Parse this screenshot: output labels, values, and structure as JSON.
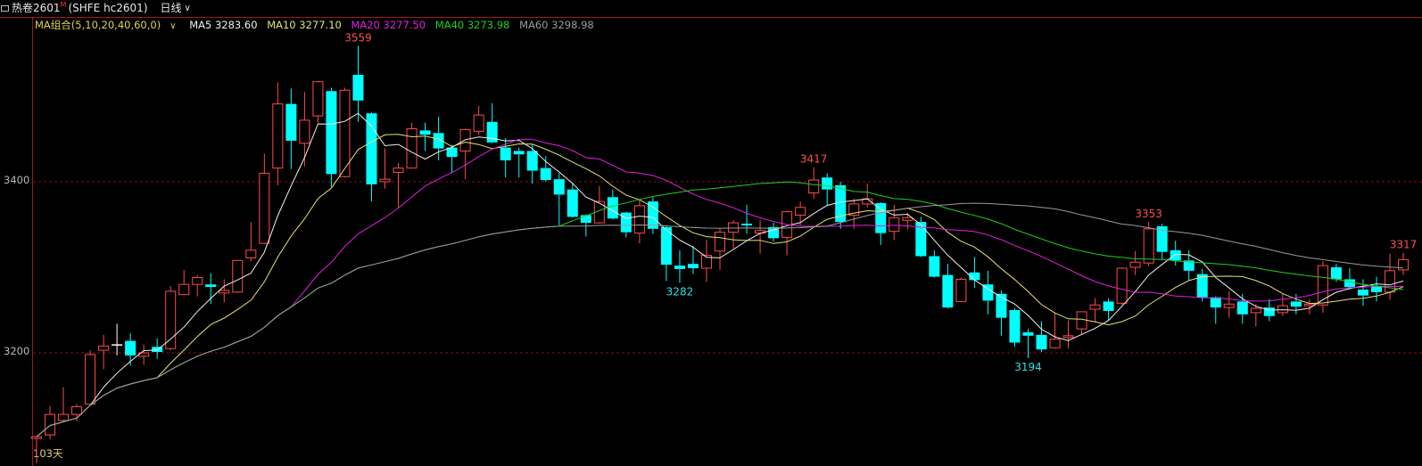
{
  "header": {
    "title": "热卷2601",
    "market_flag": "M",
    "code": "(SHFE hc2601)",
    "period": "日线",
    "ma_combo": "MA组合(5,10,20,40,60,0)",
    "ma_legend": [
      {
        "label": "MA5 3283.60",
        "color": "#f0f0f0"
      },
      {
        "label": "MA10 3277.10",
        "color": "#e6e070"
      },
      {
        "label": "MA20 3277.50",
        "color": "#e020e0"
      },
      {
        "label": "MA40 3273.98",
        "color": "#20d020"
      },
      {
        "label": "MA60 3298.98",
        "color": "#9a9a9a"
      }
    ],
    "day_count": "103天"
  },
  "chart_data": {
    "type": "candlestick",
    "ylim": [
      3060,
      3575
    ],
    "y_ticks": [
      "3400",
      "3200"
    ],
    "y_tick_values": [
      3400,
      3200
    ],
    "grid": "dashed at ticks",
    "colors": {
      "up": "#ff4a4a",
      "down": "#00ffff",
      "flat": "#ffffff",
      "grid": "#8a1010"
    },
    "ma_periods": [
      5,
      10,
      20,
      40,
      60
    ],
    "ma_colors": [
      "#f0f0f0",
      "#e6e070",
      "#e020e0",
      "#20d020",
      "#9a9a9a"
    ],
    "ohlc_fields": [
      "open",
      "high",
      "low",
      "close"
    ],
    "ohlc": [
      [
        3100,
        3103,
        3071,
        3102
      ],
      [
        3104,
        3138,
        3099,
        3128
      ],
      [
        3121,
        3160,
        3119,
        3128
      ],
      [
        3128,
        3140,
        3120,
        3137
      ],
      [
        3140,
        3203,
        3139,
        3198
      ],
      [
        3203,
        3221,
        3181,
        3208
      ],
      [
        3210,
        3234,
        3197,
        3210
      ],
      [
        3214,
        3223,
        3185,
        3197
      ],
      [
        3196,
        3210,
        3186,
        3200
      ],
      [
        3207,
        3217,
        3193,
        3201
      ],
      [
        3205,
        3278,
        3203,
        3272
      ],
      [
        3268,
        3297,
        3268,
        3280
      ],
      [
        3280,
        3291,
        3266,
        3288
      ],
      [
        3280,
        3293,
        3257,
        3277
      ],
      [
        3270,
        3286,
        3259,
        3273
      ],
      [
        3271,
        3309,
        3270,
        3308
      ],
      [
        3311,
        3353,
        3307,
        3320
      ],
      [
        3328,
        3433,
        3327,
        3410
      ],
      [
        3416,
        3516,
        3396,
        3491
      ],
      [
        3491,
        3509,
        3415,
        3448
      ],
      [
        3445,
        3505,
        3418,
        3472
      ],
      [
        3477,
        3518,
        3469,
        3517
      ],
      [
        3506,
        3510,
        3394,
        3409
      ],
      [
        3406,
        3510,
        3405,
        3507
      ],
      [
        3525,
        3559,
        3470,
        3495
      ],
      [
        3480,
        3481,
        3377,
        3397
      ],
      [
        3400,
        3439,
        3392,
        3403
      ],
      [
        3411,
        3422,
        3370,
        3416
      ],
      [
        3416,
        3469,
        3416,
        3462
      ],
      [
        3460,
        3469,
        3436,
        3455
      ],
      [
        3457,
        3476,
        3425,
        3439
      ],
      [
        3440,
        3443,
        3410,
        3429
      ],
      [
        3436,
        3462,
        3403,
        3461
      ],
      [
        3459,
        3489,
        3455,
        3478
      ],
      [
        3470,
        3492,
        3445,
        3446
      ],
      [
        3440,
        3451,
        3405,
        3425
      ],
      [
        3436,
        3440,
        3405,
        3432
      ],
      [
        3436,
        3444,
        3398,
        3413
      ],
      [
        3416,
        3430,
        3400,
        3402
      ],
      [
        3403,
        3410,
        3349,
        3385
      ],
      [
        3391,
        3399,
        3358,
        3359
      ],
      [
        3361,
        3362,
        3336,
        3352
      ],
      [
        3352,
        3395,
        3351,
        3377
      ],
      [
        3382,
        3391,
        3356,
        3357
      ],
      [
        3364,
        3365,
        3335,
        3341
      ],
      [
        3340,
        3379,
        3328,
        3372
      ],
      [
        3377,
        3382,
        3339,
        3345
      ],
      [
        3347,
        3348,
        3284,
        3303
      ],
      [
        3302,
        3320,
        3282,
        3298
      ],
      [
        3304,
        3325,
        3292,
        3299
      ],
      [
        3299,
        3332,
        3283,
        3314
      ],
      [
        3319,
        3346,
        3297,
        3341
      ],
      [
        3341,
        3355,
        3322,
        3352
      ],
      [
        3351,
        3373,
        3339,
        3349
      ],
      [
        3340,
        3355,
        3316,
        3343
      ],
      [
        3347,
        3352,
        3330,
        3334
      ],
      [
        3335,
        3366,
        3314,
        3365
      ],
      [
        3361,
        3377,
        3349,
        3370
      ],
      [
        3387,
        3417,
        3380,
        3402
      ],
      [
        3405,
        3410,
        3372,
        3391
      ],
      [
        3396,
        3400,
        3345,
        3353
      ],
      [
        3361,
        3380,
        3345,
        3374
      ],
      [
        3374,
        3398,
        3370,
        3380
      ],
      [
        3375,
        3376,
        3326,
        3340
      ],
      [
        3342,
        3373,
        3332,
        3358
      ],
      [
        3355,
        3364,
        3344,
        3358
      ],
      [
        3353,
        3359,
        3312,
        3313
      ],
      [
        3313,
        3320,
        3288,
        3289
      ],
      [
        3291,
        3304,
        3252,
        3253
      ],
      [
        3260,
        3288,
        3259,
        3286
      ],
      [
        3294,
        3312,
        3276,
        3285
      ],
      [
        3280,
        3296,
        3245,
        3261
      ],
      [
        3269,
        3273,
        3220,
        3241
      ],
      [
        3250,
        3252,
        3207,
        3212
      ],
      [
        3224,
        3228,
        3194,
        3220
      ],
      [
        3221,
        3237,
        3201,
        3204
      ],
      [
        3206,
        3247,
        3205,
        3216
      ],
      [
        3218,
        3238,
        3205,
        3220
      ],
      [
        3228,
        3248,
        3221,
        3248
      ],
      [
        3251,
        3264,
        3236,
        3256
      ],
      [
        3260,
        3264,
        3238,
        3249
      ],
      [
        3258,
        3300,
        3256,
        3299
      ],
      [
        3300,
        3319,
        3291,
        3306
      ],
      [
        3305,
        3353,
        3301,
        3345
      ],
      [
        3348,
        3351,
        3309,
        3318
      ],
      [
        3320,
        3331,
        3302,
        3308
      ],
      [
        3308,
        3320,
        3285,
        3296
      ],
      [
        3292,
        3298,
        3260,
        3265
      ],
      [
        3265,
        3266,
        3234,
        3253
      ],
      [
        3253,
        3272,
        3241,
        3257
      ],
      [
        3260,
        3269,
        3234,
        3245
      ],
      [
        3247,
        3257,
        3231,
        3252
      ],
      [
        3253,
        3263,
        3237,
        3243
      ],
      [
        3247,
        3269,
        3243,
        3255
      ],
      [
        3260,
        3269,
        3245,
        3254
      ],
      [
        3255,
        3263,
        3245,
        3257
      ],
      [
        3256,
        3307,
        3247,
        3302
      ],
      [
        3300,
        3304,
        3283,
        3286
      ],
      [
        3286,
        3299,
        3274,
        3277
      ],
      [
        3274,
        3286,
        3255,
        3267
      ],
      [
        3278,
        3289,
        3260,
        3271
      ],
      [
        3271,
        3316,
        3262,
        3296
      ],
      [
        3297,
        3317,
        3291,
        3309
      ]
    ],
    "annotations": [
      {
        "index": 24,
        "kind": "high",
        "label": "3559",
        "value": 3559
      },
      {
        "index": 48,
        "kind": "low",
        "label": "3282",
        "value": 3282
      },
      {
        "index": 58,
        "kind": "high",
        "label": "3417",
        "value": 3417
      },
      {
        "index": 74,
        "kind": "low",
        "label": "3194",
        "value": 3194
      },
      {
        "index": 83,
        "kind": "high",
        "label": "3353",
        "value": 3353
      },
      {
        "index": 102,
        "kind": "high",
        "label": "3317",
        "value": 3317
      }
    ]
  }
}
